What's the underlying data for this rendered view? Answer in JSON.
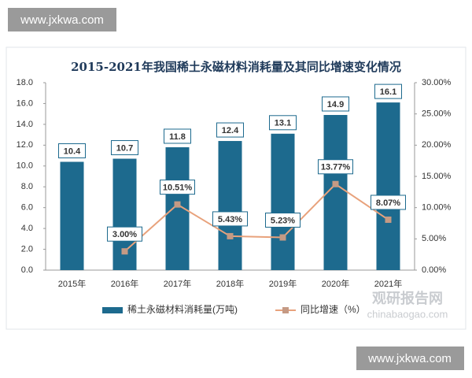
{
  "watermark": {
    "top": "www.jxkwa.com",
    "bottom": "www.jxkwa.com",
    "logo": "观研报告网",
    "site": "chinabaogao.com"
  },
  "chart_data": {
    "type": "bar",
    "title": "2015-2021年我国稀土永磁材料消耗量及其同比增速变化情况",
    "categories": [
      "2015年",
      "2016年",
      "2017年",
      "2018年",
      "2019年",
      "2020年",
      "2021年"
    ],
    "series": [
      {
        "name": "稀土永磁材料消耗量(万吨)",
        "color": "#1d6a8e",
        "values": [
          10.4,
          10.7,
          11.8,
          12.4,
          13.1,
          14.9,
          16.1
        ]
      },
      {
        "name": "同比增速（%）",
        "color": "#e8a27c",
        "type": "line",
        "axis": "y2",
        "values": [
          null,
          3.0,
          10.51,
          5.43,
          5.23,
          13.77,
          8.07
        ],
        "value_labels": [
          null,
          "3.00%",
          "10.51%",
          "5.43%",
          "5.23%",
          "13.77%",
          "8.07%"
        ]
      }
    ],
    "ylim": [
      0,
      18
    ],
    "yticks": [
      {
        "value": 0,
        "label": "0.0"
      },
      {
        "value": 2,
        "label": "2.0"
      },
      {
        "value": 4,
        "label": "4.0"
      },
      {
        "value": 6,
        "label": "6.0"
      },
      {
        "value": 8,
        "label": "8.0"
      },
      {
        "value": 10,
        "label": "10.0"
      },
      {
        "value": 12,
        "label": "12.0"
      },
      {
        "value": 14,
        "label": "14.0"
      },
      {
        "value": 16,
        "label": "16.0"
      },
      {
        "value": 18,
        "label": "18.0"
      }
    ],
    "y2lim": [
      0,
      30
    ],
    "y2ticks": [
      {
        "value": 0,
        "label": "0.00%"
      },
      {
        "value": 5,
        "label": "5.00%"
      },
      {
        "value": 10,
        "label": "10.00%"
      },
      {
        "value": 15,
        "label": "15.00%"
      },
      {
        "value": 20,
        "label": "20.00%"
      },
      {
        "value": 25,
        "label": "25.00%"
      },
      {
        "value": 30,
        "label": "30.00%"
      }
    ],
    "legend": "bottom"
  }
}
